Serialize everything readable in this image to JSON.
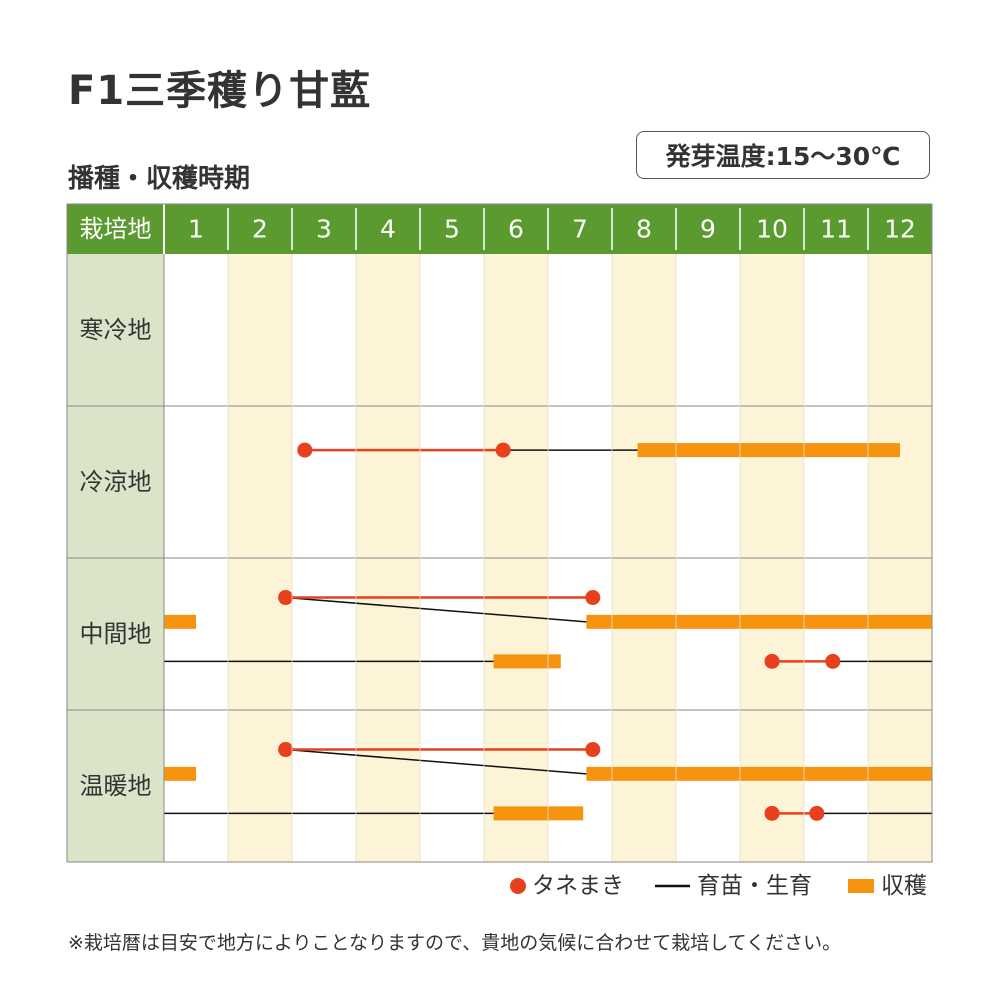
{
  "title": "F1三季穫り甘藍",
  "subtitle": "播種・収穫時期",
  "germination_temp": "発芽温度:15〜30℃",
  "footnote": "※栽培暦は目安で地方によりことなりますので、貴地の気候に合わせて栽培してください。",
  "colors": {
    "header_green": "#5a9a2e",
    "region_bg": "#dbe4c9",
    "alt_band": "#fdf3d6",
    "sowing_red": "#e8401c",
    "harvest_orange": "#f7940f",
    "growing_black": "#111111",
    "grid": "#888888"
  },
  "chart_data": {
    "type": "table",
    "header_label": "栽培地",
    "months": [
      "1",
      "2",
      "3",
      "4",
      "5",
      "6",
      "7",
      "8",
      "9",
      "10",
      "11",
      "12"
    ],
    "legend": [
      {
        "key": "sowing",
        "label": "タネまき",
        "marker": "dot"
      },
      {
        "key": "growing",
        "label": "育苗・生育",
        "marker": "line"
      },
      {
        "key": "harvest",
        "label": "収穫",
        "marker": "bar"
      }
    ],
    "regions": [
      {
        "name": "寒冷地",
        "tracks": []
      },
      {
        "name": "冷涼地",
        "tracks": [
          {
            "sowing": [
              3.2,
              6.3
            ],
            "growing": [
              [
                6.3,
                8.4
              ]
            ],
            "harvest": [
              8.4,
              12.5
            ]
          }
        ]
      },
      {
        "name": "中間地",
        "tracks": [
          {
            "sowing": [
              2.9,
              7.7
            ],
            "growing": [
              [
                2.9,
                7.6
              ]
            ],
            "harvest": [
              7.6,
              13.0
            ]
          },
          {
            "sowing": null,
            "growing": [],
            "harvest": [
              1.0,
              1.5
            ]
          },
          {
            "sowing": [
              10.5,
              11.45
            ],
            "growing": [
              [
                1.0,
                6.15
              ],
              [
                11.45,
                13.0
              ]
            ],
            "harvest": [
              6.15,
              7.2
            ]
          }
        ]
      },
      {
        "name": "温暖地",
        "tracks": [
          {
            "sowing": [
              2.9,
              7.7
            ],
            "growing": [
              [
                2.9,
                7.6
              ]
            ],
            "harvest": [
              7.6,
              13.0
            ]
          },
          {
            "sowing": null,
            "growing": [],
            "harvest": [
              1.0,
              1.5
            ]
          },
          {
            "sowing": [
              10.5,
              11.2
            ],
            "growing": [
              [
                1.0,
                6.15
              ],
              [
                11.2,
                13.0
              ]
            ],
            "harvest": [
              6.15,
              7.55
            ]
          }
        ]
      }
    ]
  }
}
